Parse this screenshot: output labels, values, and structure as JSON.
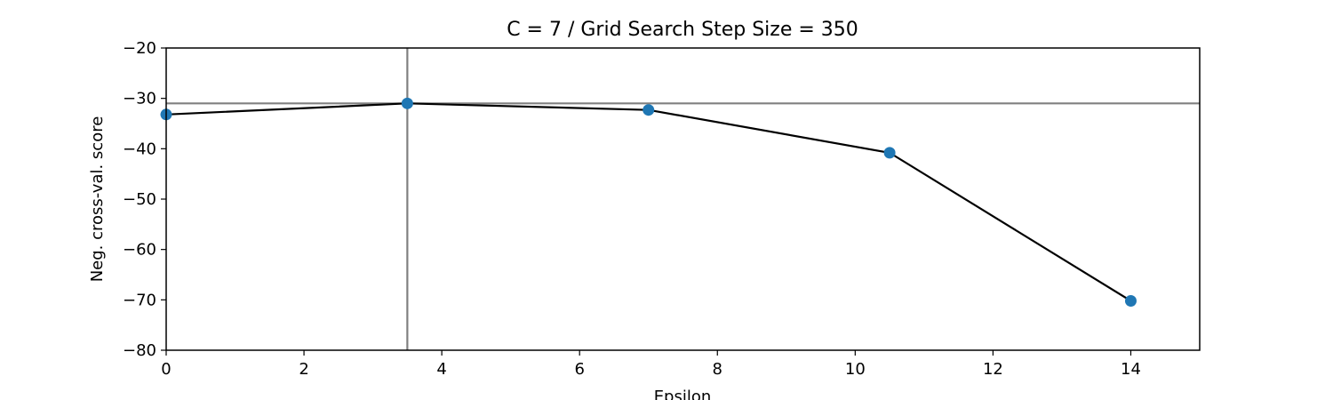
{
  "chart_data": {
    "type": "scatter",
    "title": "C = 7 / Grid Search Step Size = 350",
    "xlabel": "Epsilon",
    "ylabel": "Neg. cross-val. score",
    "xlim": [
      0,
      15
    ],
    "ylim": [
      -80,
      -20
    ],
    "xticks": [
      0,
      2,
      4,
      6,
      8,
      10,
      12,
      14
    ],
    "yticks": [
      -80,
      -70,
      -60,
      -50,
      -40,
      -30,
      -20
    ],
    "grid": false,
    "series": [
      {
        "x": [
          0,
          3.5,
          7,
          10.5,
          14
        ],
        "y": [
          -33.2,
          -31.0,
          -32.3,
          -40.8,
          -70.2
        ],
        "line_color": "#000000",
        "marker_color": "#1f77b4"
      }
    ],
    "reference_lines": {
      "vertical_x": 3.5,
      "horizontal_y": -31.0,
      "color": "#808080"
    }
  }
}
